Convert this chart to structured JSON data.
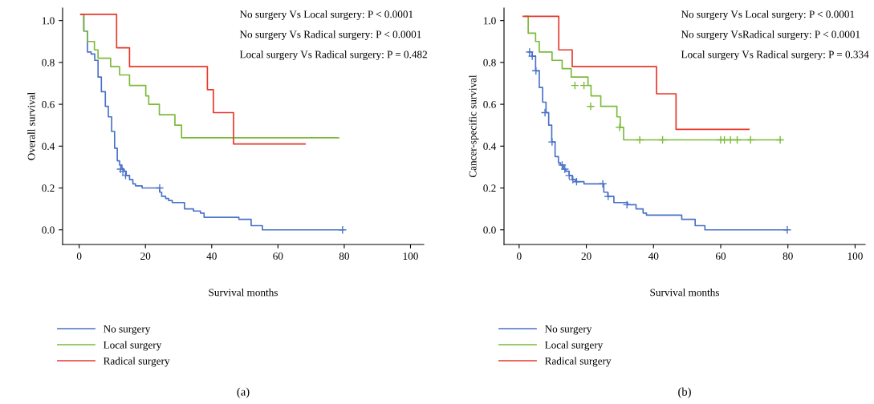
{
  "chart_data": [
    {
      "type": "step",
      "xlabel": "Survival months",
      "ylabel": "Overall survival",
      "xlim": [
        -5,
        104
      ],
      "ylim": [
        -0.07,
        1.06
      ],
      "xticks": [
        0,
        20,
        40,
        60,
        80,
        100
      ],
      "yticks": [
        {
          "value": 0,
          "label": "0.0"
        },
        {
          "value": 0.2,
          "label": "0.2"
        },
        {
          "value": 0.4,
          "label": "0.4"
        },
        {
          "value": 0.6,
          "label": "0.6"
        },
        {
          "value": 0.8,
          "label": "0.8"
        },
        {
          "value": 1.0,
          "label": "1.0"
        }
      ],
      "grid": false,
      "legend": "bottom left",
      "annotations": [
        "No surgery Vs Local surgery: P < 0.0001",
        "No surgery Vs Radical surgery: P < 0.0001",
        "Local surgery Vs Radical surgery: P = 0.482",
        "(a)"
      ],
      "series": [
        {
          "name": "No surgery",
          "color": "#4a72c8",
          "x": [
            0.5,
            1.4,
            2.5,
            3.6,
            4.7,
            5.7,
            6.7,
            7.9,
            8.8,
            9.8,
            10.7,
            11.5,
            12.2,
            12.9,
            13.6,
            14.2,
            15.2,
            16.2,
            17.0,
            19.0,
            24.3,
            24.9,
            26.1,
            27.0,
            28.1,
            31.8,
            34.5,
            36.6,
            37.7,
            48.2,
            51.9,
            55.3,
            79.5
          ],
          "values": [
            1.03,
            0.95,
            0.85,
            0.84,
            0.81,
            0.73,
            0.66,
            0.59,
            0.54,
            0.47,
            0.39,
            0.33,
            0.31,
            0.29,
            0.28,
            0.26,
            0.24,
            0.22,
            0.21,
            0.2,
            0.18,
            0.16,
            0.15,
            0.14,
            0.13,
            0.1,
            0.09,
            0.08,
            0.06,
            0.05,
            0.02,
            0.0,
            0.0
          ]
        },
        {
          "name": "Local surgery",
          "color": "#7dba3a",
          "x": [
            0.5,
            1.4,
            2.5,
            4.6,
            5.7,
            9.5,
            12.2,
            15.2,
            20.1,
            21.0,
            24.2,
            28.9,
            30.9,
            78.3
          ],
          "values": [
            1.03,
            0.95,
            0.9,
            0.86,
            0.82,
            0.78,
            0.74,
            0.69,
            0.64,
            0.6,
            0.55,
            0.5,
            0.44,
            0.44
          ]
        },
        {
          "name": "Radical surgery",
          "color": "#e8372a",
          "x": [
            0.5,
            11.3,
            15.2,
            38.7,
            40.5,
            46.6,
            68.2
          ],
          "values": [
            1.03,
            0.87,
            0.78,
            0.67,
            0.56,
            0.41,
            0.41
          ]
        },
        {
          "type": "scatter",
          "marker": "cross",
          "color": "#4a72c8",
          "x": [
            12.5,
            13.2,
            14.0,
            24.3,
            79.5
          ],
          "values": [
            0.29,
            0.28,
            0.26,
            0.2,
            0.0
          ]
        }
      ]
    },
    {
      "type": "step",
      "xlabel": "Survival months",
      "ylabel": "Cancer-specific survival",
      "xlim": [
        -4.5,
        103
      ],
      "ylim": [
        -0.07,
        1.06
      ],
      "xticks": [
        0,
        20,
        40,
        60,
        80,
        100
      ],
      "yticks": [
        {
          "value": 0,
          "label": "0.0"
        },
        {
          "value": 0.2,
          "label": "0.2"
        },
        {
          "value": 0.4,
          "label": "0.4"
        },
        {
          "value": 0.6,
          "label": "0.6"
        },
        {
          "value": 0.8,
          "label": "0.8"
        },
        {
          "value": 1.0,
          "label": "1.0"
        }
      ],
      "grid": false,
      "legend": "bottom left",
      "annotations": [
        "No surgery Vs Local surgery: P < 0.0001",
        "No surgery VsRadical surgery: P < 0.0001",
        "Local surgery Vs Radical surgery: P = 0.334",
        "(b)"
      ],
      "series": [
        {
          "name": "No surgery",
          "color": "#4a72c8",
          "x": [
            2.7,
            3.9,
            4.9,
            6.0,
            7.0,
            8.0,
            8.8,
            9.7,
            10.7,
            11.7,
            12.3,
            13.2,
            13.9,
            14.9,
            15.8,
            16.8,
            19.3,
            25.2,
            26.4,
            28.2,
            32.3,
            34.8,
            36.9,
            37.9,
            48.4,
            52.4,
            55.3,
            79.8
          ],
          "values": [
            0.85,
            0.83,
            0.76,
            0.68,
            0.61,
            0.56,
            0.5,
            0.42,
            0.35,
            0.32,
            0.31,
            0.29,
            0.28,
            0.26,
            0.24,
            0.23,
            0.22,
            0.18,
            0.16,
            0.13,
            0.12,
            0.1,
            0.08,
            0.07,
            0.05,
            0.02,
            0.0,
            0.0
          ]
        },
        {
          "name": "Local surgery",
          "color": "#7dba3a",
          "x": [
            1.9,
            2.7,
            4.9,
            6.0,
            9.8,
            12.8,
            15.5,
            20.5,
            21.4,
            24.3,
            29.1,
            30.1,
            31.1,
            77.9
          ],
          "values": [
            1.02,
            0.94,
            0.9,
            0.85,
            0.81,
            0.77,
            0.73,
            0.69,
            0.64,
            0.59,
            0.54,
            0.49,
            0.43,
            0.43
          ]
        },
        {
          "name": "Radical surgery",
          "color": "#e8372a",
          "x": [
            1.2,
            11.8,
            15.8,
            40.9,
            46.7,
            68.4
          ],
          "values": [
            1.02,
            0.86,
            0.78,
            0.65,
            0.48,
            0.48
          ]
        },
        {
          "type": "scatter",
          "marker": "cross",
          "color": "#7dba3a",
          "x": [
            16.6,
            19.3,
            21.3,
            29.9,
            35.9,
            42.7,
            60.0,
            61.1,
            62.9,
            64.9,
            68.9,
            77.7
          ],
          "values": [
            0.69,
            0.69,
            0.59,
            0.49,
            0.43,
            0.43,
            0.43,
            0.43,
            0.43,
            0.43,
            0.43,
            0.43
          ]
        },
        {
          "type": "scatter",
          "marker": "cross",
          "color": "#4a72c8",
          "x": [
            3.1,
            3.9,
            5.0,
            7.7,
            9.8,
            12.8,
            13.6,
            14.9,
            16.0,
            17.1,
            24.9,
            26.5,
            32.1,
            79.8
          ],
          "values": [
            0.85,
            0.83,
            0.76,
            0.56,
            0.42,
            0.31,
            0.29,
            0.26,
            0.24,
            0.23,
            0.22,
            0.16,
            0.12,
            0.0
          ]
        }
      ]
    }
  ]
}
